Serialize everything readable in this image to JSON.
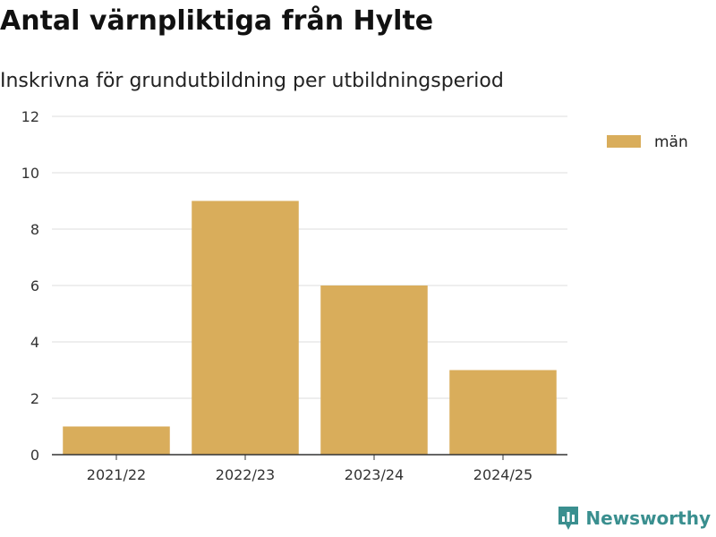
{
  "header": {
    "title": "Antal värnpliktiga från Hylte",
    "subtitle": "Inskrivna för grundutbildning per utbildningsperiod"
  },
  "brand": {
    "name": "Newsworthy",
    "color": "#3a8f8f"
  },
  "chart_data": {
    "type": "bar",
    "categories": [
      "2021/22",
      "2022/23",
      "2023/24",
      "2024/25"
    ],
    "series": [
      {
        "name": "män",
        "color": "#d9ad5b",
        "values": [
          1,
          9,
          6,
          3
        ]
      }
    ],
    "ylim": [
      0,
      12
    ],
    "yticks": [
      0,
      2,
      4,
      6,
      8,
      10,
      12
    ],
    "grid": true,
    "legend": "top-right"
  }
}
